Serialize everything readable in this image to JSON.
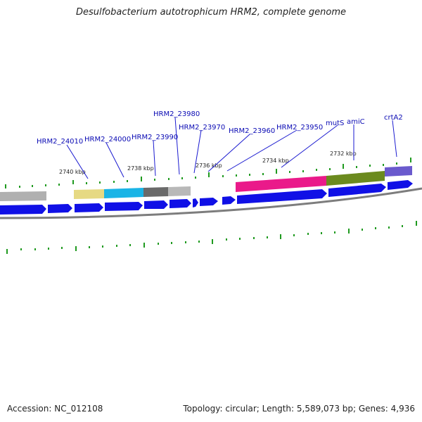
{
  "title": "Desulfobacterium autotrophicum HRM2, complete genome",
  "footer": {
    "accession": "Accession: NC_012108",
    "summary": "Topology: circular; Length: 5,589,073 bp; Genes: 4,936"
  },
  "colors": {
    "cds": "#1010e6",
    "backbone": "#7d7d7d",
    "tick": "#1f9a1f",
    "label": "#0a0ab4",
    "label_line": "#1a1ad0"
  },
  "kbp_labels": [
    "2740 kbp",
    "2738 kbp",
    "2736 kbp",
    "2734 kbp",
    "2732 kbp"
  ],
  "gene_labels": [
    "HRM2_24010",
    "HRM2_24000",
    "HRM2_23990",
    "HRM2_23980",
    "HRM2_23970",
    "HRM2_23960",
    "HRM2_23950",
    "mutS",
    "amiC",
    "crtA2"
  ],
  "feature_colors": [
    "#b0b0b0",
    "#e6d983",
    "#1ab4e6",
    "#6a6a6a",
    "#b8b8b8",
    "#ea1a8a",
    "#6b8a1e",
    "#6a5acd"
  ]
}
